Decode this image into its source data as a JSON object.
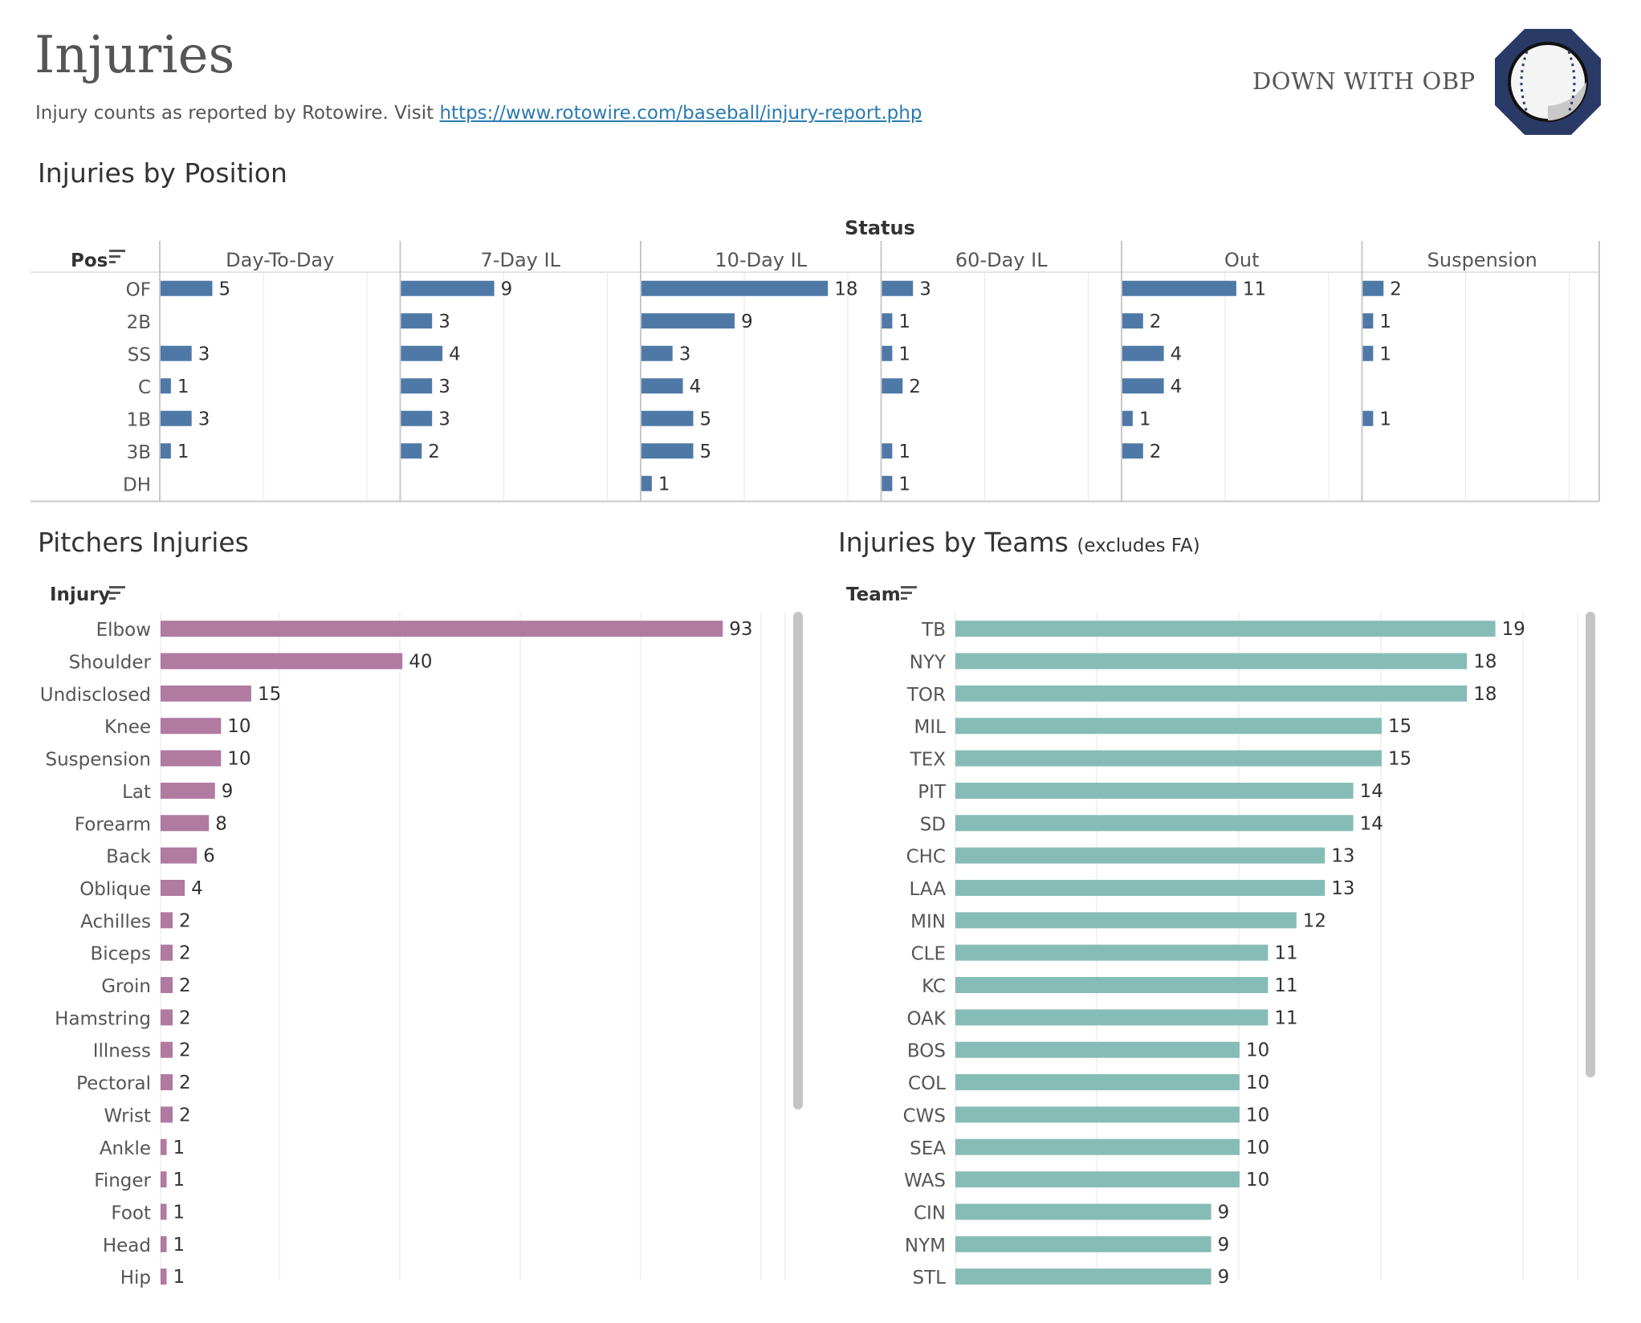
{
  "header": {
    "title": "Injuries",
    "subtitle_prefix": "Injury counts as reported by Rotowire. Visit ",
    "subtitle_link": "https://www.rotowire.com/baseball/injury-report.php",
    "brand": "DOWN WITH OBP",
    "logo_icon": "baseball-icon"
  },
  "colors": {
    "position_bar": "#4e79a7",
    "pitcher_bar": "#b07aa1",
    "team_bar": "#86bcb6",
    "logo_ring": "#2a3a66"
  },
  "sections": {
    "position_title": "Injuries by Position",
    "pitchers_title": "Pitchers Injuries",
    "teams_title": "Injuries by Teams",
    "teams_note": "(excludes FA)"
  },
  "chart_data": [
    {
      "type": "bar",
      "title": "Injuries by Position",
      "column_header": "Status",
      "row_header": "Pos",
      "categories": [
        "OF",
        "2B",
        "SS",
        "C",
        "1B",
        "3B",
        "DH"
      ],
      "series": [
        {
          "name": "Day-To-Day",
          "values": [
            5,
            null,
            3,
            1,
            3,
            1,
            null
          ]
        },
        {
          "name": "7-Day IL",
          "values": [
            9,
            3,
            4,
            3,
            3,
            2,
            null
          ]
        },
        {
          "name": "10-Day IL",
          "values": [
            18,
            9,
            3,
            4,
            5,
            5,
            1
          ]
        },
        {
          "name": "60-Day IL",
          "values": [
            3,
            1,
            1,
            2,
            null,
            1,
            1
          ]
        },
        {
          "name": "Out",
          "values": [
            11,
            2,
            4,
            4,
            1,
            2,
            null
          ]
        },
        {
          "name": "Suspension",
          "values": [
            2,
            1,
            1,
            null,
            1,
            null,
            null
          ]
        }
      ],
      "xlim": [
        0,
        22
      ]
    },
    {
      "type": "bar",
      "title": "Pitchers Injuries",
      "row_header": "Injury",
      "categories": [
        "Elbow",
        "Shoulder",
        "Undisclosed",
        "Knee",
        "Suspension",
        "Lat",
        "Forearm",
        "Back",
        "Oblique",
        "Achilles",
        "Biceps",
        "Groin",
        "Hamstring",
        "Illness",
        "Pectoral",
        "Wrist",
        "Ankle",
        "Finger",
        "Foot",
        "Head",
        "Hip"
      ],
      "values": [
        93,
        40,
        15,
        10,
        10,
        9,
        8,
        6,
        4,
        2,
        2,
        2,
        2,
        2,
        2,
        2,
        1,
        1,
        1,
        1,
        1
      ],
      "xlim": [
        0,
        100
      ]
    },
    {
      "type": "bar",
      "title": "Injuries by Teams",
      "row_header": "Team",
      "categories": [
        "TB",
        "NYY",
        "TOR",
        "MIL",
        "TEX",
        "PIT",
        "SD",
        "CHC",
        "LAA",
        "MIN",
        "CLE",
        "KC",
        "OAK",
        "BOS",
        "COL",
        "CWS",
        "SEA",
        "WAS",
        "CIN",
        "NYM",
        "STL"
      ],
      "values": [
        19,
        18,
        18,
        15,
        15,
        14,
        14,
        13,
        13,
        12,
        11,
        11,
        11,
        10,
        10,
        10,
        10,
        10,
        9,
        9,
        9
      ],
      "xlim": [
        0,
        22
      ]
    }
  ]
}
